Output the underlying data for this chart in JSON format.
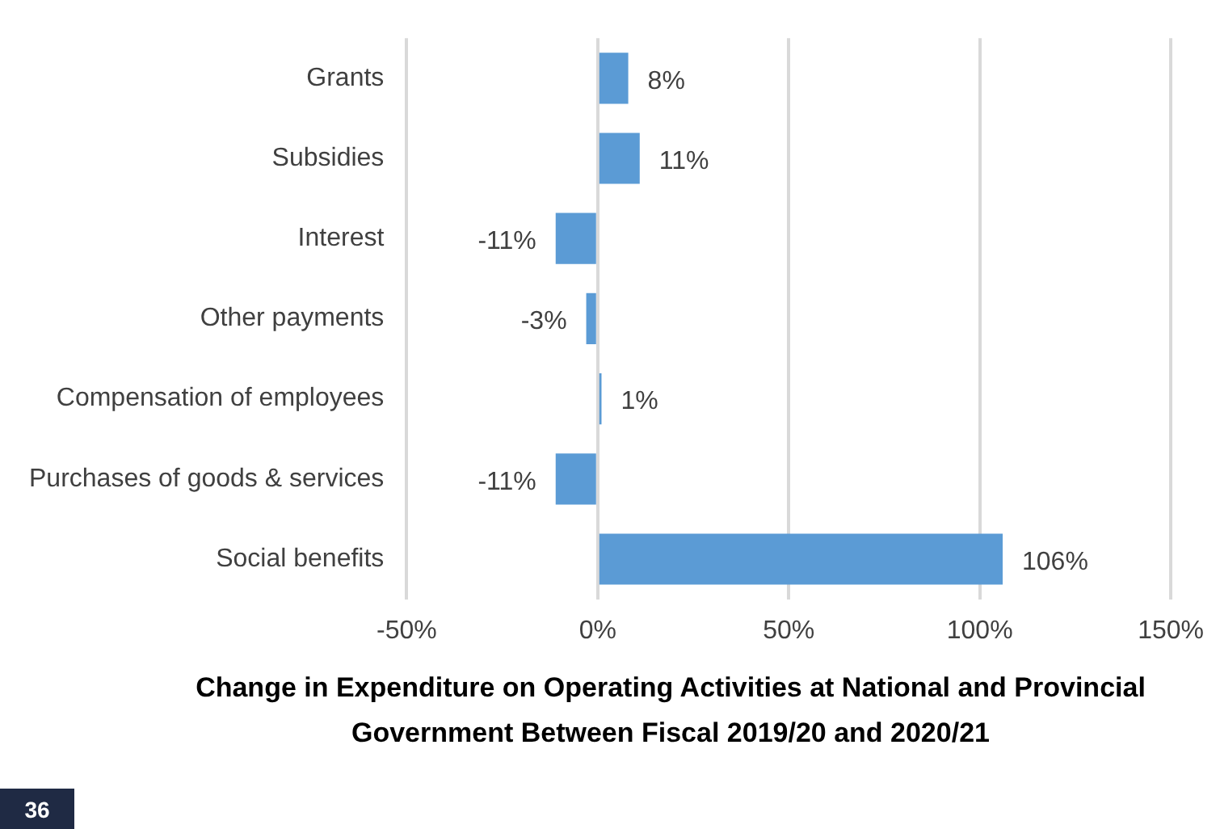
{
  "chart_data": {
    "type": "bar",
    "orientation": "horizontal",
    "title": "Change in Expenditure on Operating Activities at National and Provincial Government Between  Fiscal 2019/20 and 2020/21",
    "categories": [
      "Grants",
      "Subsidies",
      "Interest",
      "Other payments",
      "Compensation of employees",
      "Purchases of goods & services",
      "Social benefits"
    ],
    "values": [
      8,
      11,
      -11,
      -3,
      1,
      -11,
      106
    ],
    "value_labels": [
      "8%",
      "11%",
      "-11%",
      "-3%",
      "1%",
      "-11%",
      "106%"
    ],
    "color": "#5b9bd5",
    "xlim": [
      -50,
      150
    ],
    "xticks": [
      {
        "value": -50,
        "label": "-50%"
      },
      {
        "value": 0,
        "label": "0%"
      },
      {
        "value": 50,
        "label": "50%"
      },
      {
        "value": 100,
        "label": "100%"
      },
      {
        "value": 150,
        "label": "150%"
      }
    ],
    "grid": "x",
    "legend": false,
    "annotations": [
      "36"
    ]
  }
}
